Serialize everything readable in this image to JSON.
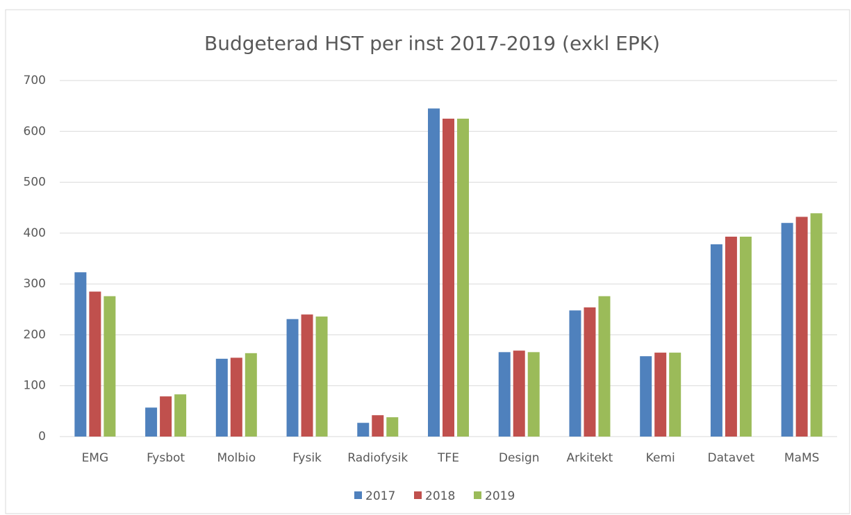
{
  "chart_data": {
    "type": "bar",
    "title": "Budgeterad HST per inst 2017-2019 (exkl EPK)",
    "categories": [
      "EMG",
      "Fysbot",
      "Molbio",
      "Fysik",
      "Radiofysik",
      "TFE",
      "Design",
      "Arkitekt",
      "Kemi",
      "Datavet",
      "MaMS"
    ],
    "series": [
      {
        "name": "2017",
        "color": "#4f81bd",
        "values": [
          323,
          57,
          153,
          231,
          27,
          645,
          166,
          248,
          158,
          378,
          420
        ]
      },
      {
        "name": "2018",
        "color": "#c0504d",
        "values": [
          285,
          79,
          155,
          240,
          42,
          625,
          169,
          254,
          165,
          393,
          432
        ]
      },
      {
        "name": "2019",
        "color": "#9bbb59",
        "values": [
          276,
          83,
          164,
          236,
          38,
          625,
          166,
          276,
          165,
          393,
          439
        ]
      }
    ],
    "ylim": [
      0,
      700
    ],
    "yticks": [
      0,
      100,
      200,
      300,
      400,
      500,
      600,
      700
    ],
    "grid": true,
    "legend": "bottom"
  }
}
